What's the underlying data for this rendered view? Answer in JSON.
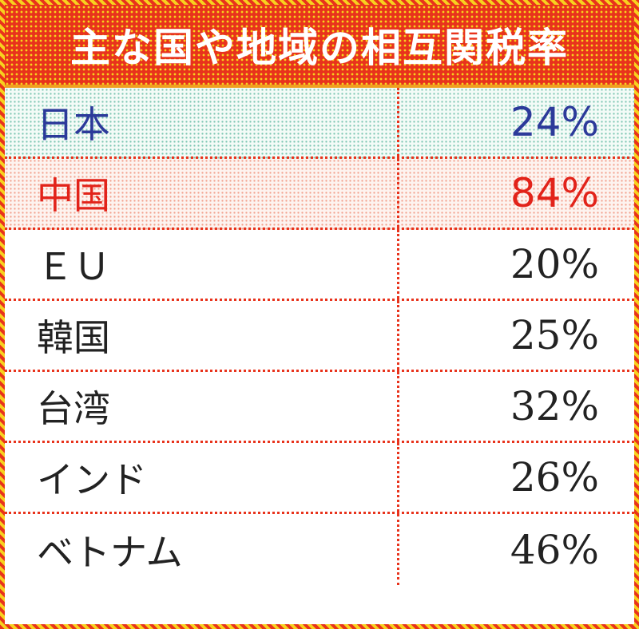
{
  "title": "主な国や地域の相互関税率",
  "colors": {
    "title_bg": "#e8331c",
    "title_dots": "#f7d21e",
    "japan_text": "#2c3a9a",
    "china_text": "#e2231a",
    "plain_text": "#222222",
    "grid_line": "#e8331c"
  },
  "rows": [
    {
      "name": "日本",
      "rate": "24%"
    },
    {
      "name": "中国",
      "rate": "84%"
    },
    {
      "name": "ＥＵ",
      "rate": "20%"
    },
    {
      "name": "韓国",
      "rate": "25%"
    },
    {
      "name": "台湾",
      "rate": "32%"
    },
    {
      "name": "インド",
      "rate": "26%"
    },
    {
      "name": "ベトナム",
      "rate": "46%"
    }
  ]
}
